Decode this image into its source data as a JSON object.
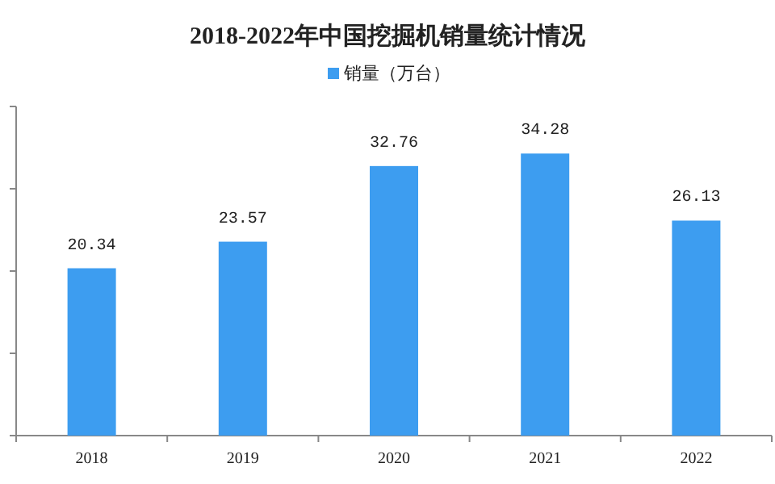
{
  "chart_data": {
    "type": "bar",
    "title": "2018-2022年中国挖掘机销量统计情况",
    "categories": [
      "2018",
      "2019",
      "2020",
      "2021",
      "2022"
    ],
    "series": [
      {
        "name": "销量（万台）",
        "color": "#3d9df0",
        "values": [
          20.34,
          23.57,
          32.76,
          34.28,
          26.13
        ]
      }
    ],
    "ylim": [
      0,
      40
    ],
    "yticks": [
      {
        "value": 0,
        "label": null
      },
      {
        "value": 10,
        "label": null
      },
      {
        "value": 20,
        "label": null
      },
      {
        "value": 30,
        "label": null
      },
      {
        "value": 40,
        "label": null
      }
    ],
    "data_labels": true,
    "legend": "top",
    "tick_labels": "x"
  }
}
